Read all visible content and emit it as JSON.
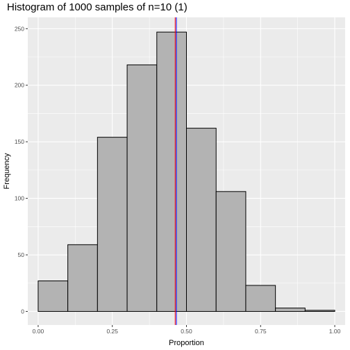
{
  "chart_data": {
    "type": "bar",
    "title": "Histogram of 1000 samples of n=10 (1)",
    "xlabel": "Proportion",
    "ylabel": "Frequency",
    "xlim": [
      -0.035,
      1.035
    ],
    "ylim": [
      -12,
      260
    ],
    "x_ticks": [
      0.0,
      0.25,
      0.5,
      0.75,
      1.0
    ],
    "x_tick_labels": [
      "0.00",
      "0.25",
      "0.50",
      "0.75",
      "1.00"
    ],
    "y_ticks": [
      0,
      50,
      100,
      150,
      200,
      250
    ],
    "y_tick_labels": [
      "0",
      "50",
      "100",
      "150",
      "200",
      "250"
    ],
    "bins": [
      {
        "start": 0.0,
        "end": 0.1,
        "value": 27
      },
      {
        "start": 0.1,
        "end": 0.2,
        "value": 59
      },
      {
        "start": 0.2,
        "end": 0.3,
        "value": 154
      },
      {
        "start": 0.3,
        "end": 0.4,
        "value": 218
      },
      {
        "start": 0.4,
        "end": 0.5,
        "value": 247
      },
      {
        "start": 0.5,
        "end": 0.6,
        "value": 162
      },
      {
        "start": 0.6,
        "end": 0.7,
        "value": 106
      },
      {
        "start": 0.7,
        "end": 0.8,
        "value": 23
      },
      {
        "start": 0.8,
        "end": 0.9,
        "value": 3
      },
      {
        "start": 0.9,
        "end": 1.0,
        "value": 1
      }
    ],
    "reference_lines": [
      {
        "x": 0.462,
        "color": "#ff0000"
      },
      {
        "x": 0.466,
        "color": "#0000ff"
      }
    ],
    "grid": true,
    "colors": {
      "panel_background": "#ebebeb",
      "grid_major": "#ffffff",
      "bar_fill": "#b3b3b3",
      "bar_stroke": "#000000"
    }
  }
}
